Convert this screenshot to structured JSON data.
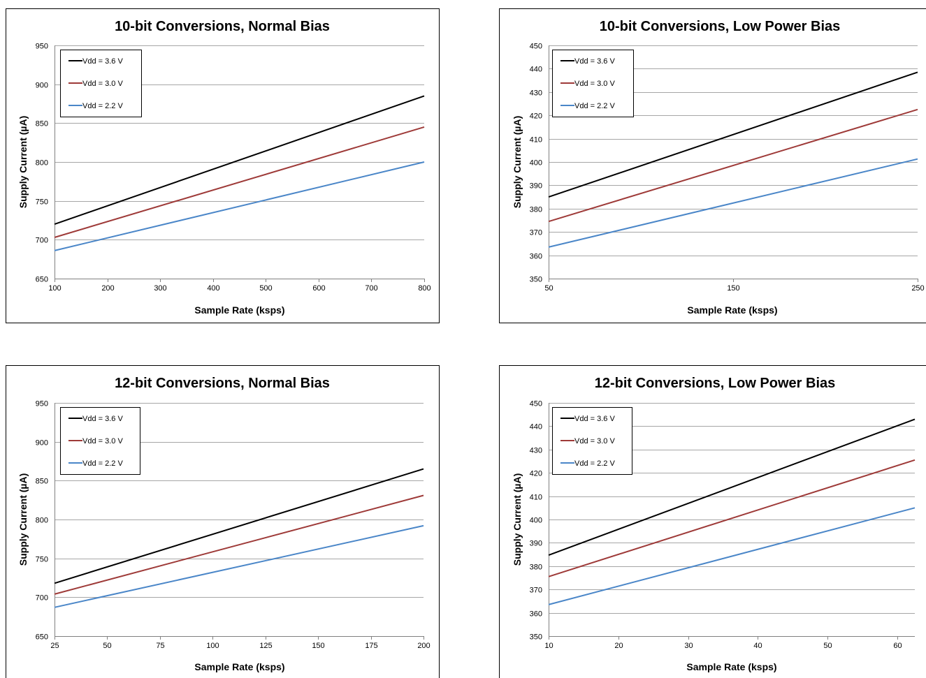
{
  "chart_data": [
    {
      "type": "line",
      "title": "10-bit Conversions, Normal Bias",
      "xlabel": "Sample Rate (ksps)",
      "ylabel": "Supply Current (µA)",
      "xlim": [
        100,
        800
      ],
      "ylim": [
        650,
        950
      ],
      "xticks": [
        100,
        200,
        300,
        400,
        500,
        600,
        700,
        800
      ],
      "yticks": [
        650,
        700,
        750,
        800,
        850,
        900,
        950
      ],
      "grid": true,
      "legend_position": "top-left",
      "series": [
        {
          "name": "Vdd = 3.6 V",
          "color": "#000000",
          "x": [
            100,
            800
          ],
          "y": [
            720,
            885
          ]
        },
        {
          "name": "Vdd = 3.0 V",
          "color": "#9e3a38",
          "x": [
            100,
            800
          ],
          "y": [
            703,
            845
          ]
        },
        {
          "name": "Vdd = 2.2 V",
          "color": "#4a86c8",
          "x": [
            100,
            800
          ],
          "y": [
            686,
            800
          ]
        }
      ]
    },
    {
      "type": "line",
      "title": "10-bit Conversions, Low Power Bias",
      "xlabel": "Sample Rate (ksps)",
      "ylabel": "Supply Current (µA)",
      "xlim": [
        50,
        250
      ],
      "ylim": [
        350,
        450
      ],
      "xticks": [
        50,
        150,
        250
      ],
      "yticks": [
        350,
        360,
        370,
        380,
        390,
        400,
        410,
        420,
        430,
        440,
        450
      ],
      "grid": true,
      "legend_position": "top-left",
      "series": [
        {
          "name": "Vdd = 3.6 V",
          "color": "#000000",
          "x": [
            50,
            250
          ],
          "y": [
            385,
            438.5
          ]
        },
        {
          "name": "Vdd = 3.0 V",
          "color": "#9e3a38",
          "x": [
            50,
            250
          ],
          "y": [
            374.5,
            422.5
          ]
        },
        {
          "name": "Vdd = 2.2 V",
          "color": "#4a86c8",
          "x": [
            50,
            250
          ],
          "y": [
            363.5,
            401.3
          ]
        }
      ]
    },
    {
      "type": "line",
      "title": "12-bit Conversions, Normal Bias",
      "xlabel": "Sample Rate (ksps)",
      "ylabel": "Supply Current (µA)",
      "xlim": [
        25,
        200
      ],
      "ylim": [
        650,
        950
      ],
      "xticks": [
        25,
        50,
        75,
        100,
        125,
        150,
        175,
        200
      ],
      "yticks": [
        650,
        700,
        750,
        800,
        850,
        900,
        950
      ],
      "grid": true,
      "legend_position": "top-left",
      "series": [
        {
          "name": "Vdd = 3.6 V",
          "color": "#000000",
          "x": [
            25,
            200
          ],
          "y": [
            718,
            865
          ]
        },
        {
          "name": "Vdd = 3.0 V",
          "color": "#9e3a38",
          "x": [
            25,
            200
          ],
          "y": [
            704,
            831
          ]
        },
        {
          "name": "Vdd = 2.2 V",
          "color": "#4a86c8",
          "x": [
            25,
            200
          ],
          "y": [
            687,
            792
          ]
        }
      ]
    },
    {
      "type": "line",
      "title": "12-bit Conversions, Low Power Bias",
      "xlabel": "Sample Rate (ksps)",
      "ylabel": "Supply Current (µA)",
      "xlim": [
        10,
        62.5
      ],
      "ylim": [
        350,
        450
      ],
      "xticks": [
        10,
        20,
        30,
        40,
        50,
        60
      ],
      "yticks": [
        350,
        360,
        370,
        380,
        390,
        400,
        410,
        420,
        430,
        440,
        450
      ],
      "grid": true,
      "legend_position": "top-left",
      "series": [
        {
          "name": "Vdd = 3.6 V",
          "color": "#000000",
          "x": [
            10,
            62.5
          ],
          "y": [
            384.7,
            443
          ]
        },
        {
          "name": "Vdd = 3.0 V",
          "color": "#9e3a38",
          "x": [
            10,
            62.5
          ],
          "y": [
            375.5,
            425.5
          ]
        },
        {
          "name": "Vdd = 2.2 V",
          "color": "#4a86c8",
          "x": [
            10,
            62.5
          ],
          "y": [
            363.5,
            405
          ]
        }
      ]
    }
  ]
}
